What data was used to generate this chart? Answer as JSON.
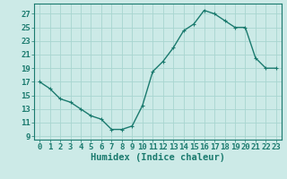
{
  "x": [
    0,
    1,
    2,
    3,
    4,
    5,
    6,
    7,
    8,
    9,
    10,
    11,
    12,
    13,
    14,
    15,
    16,
    17,
    18,
    19,
    20,
    21,
    22,
    23
  ],
  "y": [
    17,
    16,
    14.5,
    14,
    13,
    12,
    11.5,
    10,
    10,
    10.5,
    13.5,
    18.5,
    20,
    22,
    24.5,
    25.5,
    27.5,
    27,
    26,
    25,
    25,
    20.5,
    19,
    19
  ],
  "line_color": "#1a7a6e",
  "marker_color": "#1a7a6e",
  "bg_color": "#cceae7",
  "grid_color": "#a8d5d0",
  "xlabel": "Humidex (Indice chaleur)",
  "xlim": [
    -0.5,
    23.5
  ],
  "ylim": [
    8.5,
    28.5
  ],
  "yticks": [
    9,
    11,
    13,
    15,
    17,
    19,
    21,
    23,
    25,
    27
  ],
  "xticks": [
    0,
    1,
    2,
    3,
    4,
    5,
    6,
    7,
    8,
    9,
    10,
    11,
    12,
    13,
    14,
    15,
    16,
    17,
    18,
    19,
    20,
    21,
    22,
    23
  ],
  "xtick_labels": [
    "0",
    "1",
    "2",
    "3",
    "4",
    "5",
    "6",
    "7",
    "8",
    "9",
    "10",
    "11",
    "12",
    "13",
    "14",
    "15",
    "16",
    "17",
    "18",
    "19",
    "20",
    "21",
    "22",
    "23"
  ],
  "axis_color": "#1a7a6e",
  "tick_color": "#1a7a6e",
  "label_color": "#1a7a6e",
  "xlabel_fontsize": 7.5,
  "tick_fontsize": 6.5,
  "linewidth": 1.0,
  "markersize": 2.5
}
